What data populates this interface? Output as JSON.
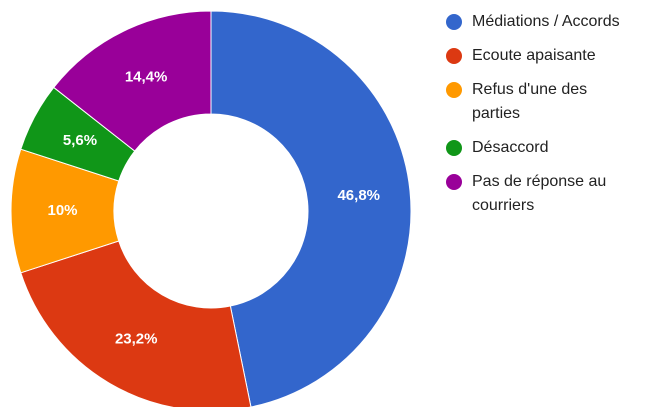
{
  "chart_data": {
    "type": "pie",
    "categories": [
      "Médiations / Accords",
      "Ecoute apaisante",
      "Refus d'une des parties",
      "Désaccord",
      "Pas de réponse au courriers"
    ],
    "values": [
      46.8,
      23.2,
      10,
      5.6,
      14.4
    ],
    "value_labels": [
      "46,8%",
      "23,2%",
      "10%",
      "5,6%",
      "14,4%"
    ],
    "colors": [
      "#3366cc",
      "#dc3912",
      "#ff9900",
      "#109618",
      "#990099"
    ],
    "legend": "right"
  }
}
